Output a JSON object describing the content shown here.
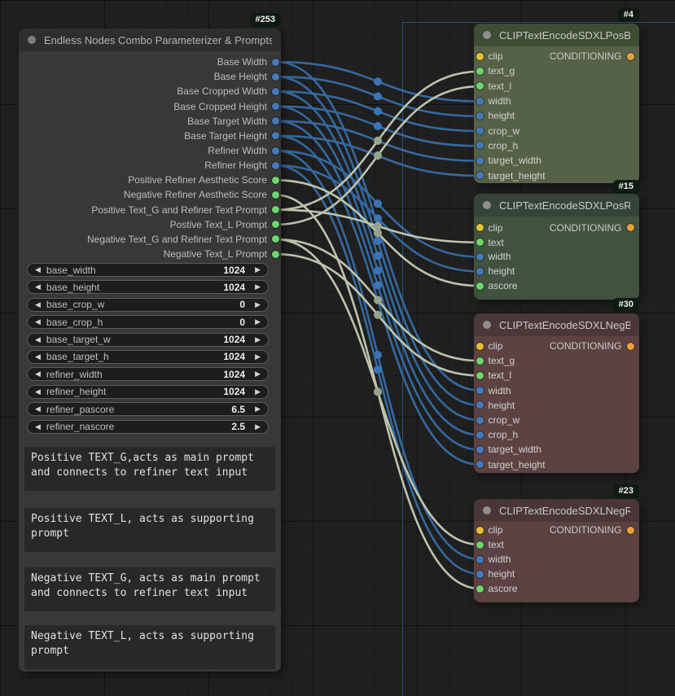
{
  "colors": {
    "link_int": "#35699f",
    "link_int_dot": "#3c74b8",
    "link_string": "#bcc5ad",
    "link_string_dot": "#97a48c",
    "slot_int": "#4679b8",
    "slot_string": "#6ed66e",
    "slot_clip": "#e7c133",
    "slot_conditioning": "#e9a23b",
    "pos_base_body": "#566247",
    "pos_refiner_body": "#41523f",
    "neg_base_body": "#5d4242",
    "neg_refiner_body": "#5b4141"
  },
  "nodes": {
    "parameterizer": {
      "badge": "#253",
      "title": "Endless Nodes Combo Parameterizer & Prompts",
      "outputs": [
        {
          "label": "Base Width",
          "type": "INT"
        },
        {
          "label": "Base Height",
          "type": "INT"
        },
        {
          "label": "Base Cropped Width",
          "type": "INT"
        },
        {
          "label": "Base Cropped Height",
          "type": "INT"
        },
        {
          "label": "Base Target Width",
          "type": "INT"
        },
        {
          "label": "Base Target Height",
          "type": "INT"
        },
        {
          "label": "Refiner Width",
          "type": "INT"
        },
        {
          "label": "Refiner Height",
          "type": "INT"
        },
        {
          "label": "Positive Refiner Aesthetic Score",
          "type": "STRING"
        },
        {
          "label": "Negative Refiner Aesthetic Score",
          "type": "STRING"
        },
        {
          "label": "Positive Text_G and Refiner Text Prompt",
          "type": "STRING"
        },
        {
          "label": "Postive Text_L Prompt",
          "type": "STRING"
        },
        {
          "label": "Negative Text_G and Refiner Text Prompt",
          "type": "STRING"
        },
        {
          "label": "Negative Text_L Prompt",
          "type": "STRING"
        }
      ],
      "widgets": [
        {
          "name": "base_width",
          "value": "1024"
        },
        {
          "name": "base_height",
          "value": "1024"
        },
        {
          "name": "base_crop_w",
          "value": "0"
        },
        {
          "name": "base_crop_h",
          "value": "0"
        },
        {
          "name": "base_target_w",
          "value": "1024"
        },
        {
          "name": "base_target_h",
          "value": "1024"
        },
        {
          "name": "refiner_width",
          "value": "1024"
        },
        {
          "name": "refiner_height",
          "value": "1024"
        },
        {
          "name": "refiner_pascore",
          "value": "6.5"
        },
        {
          "name": "refiner_nascore",
          "value": "2.5"
        }
      ],
      "prompts": [
        "Positive TEXT_G,acts as main prompt and connects to refiner text input",
        "Positive TEXT_L, acts as supporting prompt",
        "Negative TEXT_G, acts as main prompt and connects to refiner text input",
        "Negative TEXT_L, acts as supporting prompt"
      ]
    },
    "pos_base": {
      "badge": "#4",
      "title": "CLIPTextEncodeSDXLPosBase",
      "output": "CONDITIONING",
      "inputs": [
        {
          "name": "clip",
          "type": "CLIP"
        },
        {
          "name": "text_g",
          "type": "STRING"
        },
        {
          "name": "text_l",
          "type": "STRING"
        },
        {
          "name": "width",
          "type": "INT"
        },
        {
          "name": "height",
          "type": "INT"
        },
        {
          "name": "crop_w",
          "type": "INT"
        },
        {
          "name": "crop_h",
          "type": "INT"
        },
        {
          "name": "target_width",
          "type": "INT"
        },
        {
          "name": "target_height",
          "type": "INT"
        }
      ]
    },
    "pos_refiner": {
      "badge": "#15",
      "title": "CLIPTextEncodeSDXLPosRefiner",
      "output": "CONDITIONING",
      "inputs": [
        {
          "name": "clip",
          "type": "CLIP"
        },
        {
          "name": "text",
          "type": "STRING"
        },
        {
          "name": "width",
          "type": "INT"
        },
        {
          "name": "height",
          "type": "INT"
        },
        {
          "name": "ascore",
          "type": "STRING"
        }
      ]
    },
    "neg_base": {
      "badge": "#30",
      "title": "CLIPTextEncodeSDXLNegBase",
      "output": "CONDITIONING",
      "inputs": [
        {
          "name": "clip",
          "type": "CLIP"
        },
        {
          "name": "text_g",
          "type": "STRING"
        },
        {
          "name": "text_l",
          "type": "STRING"
        },
        {
          "name": "width",
          "type": "INT"
        },
        {
          "name": "height",
          "type": "INT"
        },
        {
          "name": "crop_w",
          "type": "INT"
        },
        {
          "name": "crop_h",
          "type": "INT"
        },
        {
          "name": "target_width",
          "type": "INT"
        },
        {
          "name": "target_height",
          "type": "INT"
        }
      ]
    },
    "neg_refiner": {
      "badge": "#23",
      "title": "CLIPTextEncodeSDXLNegRefiner",
      "output": "CONDITIONING",
      "inputs": [
        {
          "name": "clip",
          "type": "CLIP"
        },
        {
          "name": "text",
          "type": "STRING"
        },
        {
          "name": "width",
          "type": "INT"
        },
        {
          "name": "height",
          "type": "INT"
        },
        {
          "name": "ascore",
          "type": "STRING"
        }
      ]
    }
  },
  "connections": [
    {
      "from": 0,
      "to": "pos_base",
      "input": 3,
      "type": "INT"
    },
    {
      "from": 1,
      "to": "pos_base",
      "input": 4,
      "type": "INT"
    },
    {
      "from": 2,
      "to": "pos_base",
      "input": 5,
      "type": "INT"
    },
    {
      "from": 3,
      "to": "pos_base",
      "input": 6,
      "type": "INT"
    },
    {
      "from": 4,
      "to": "pos_base",
      "input": 7,
      "type": "INT"
    },
    {
      "from": 5,
      "to": "pos_base",
      "input": 8,
      "type": "INT"
    },
    {
      "from": 0,
      "to": "neg_base",
      "input": 3,
      "type": "INT"
    },
    {
      "from": 1,
      "to": "neg_base",
      "input": 4,
      "type": "INT"
    },
    {
      "from": 2,
      "to": "neg_base",
      "input": 5,
      "type": "INT"
    },
    {
      "from": 3,
      "to": "neg_base",
      "input": 6,
      "type": "INT"
    },
    {
      "from": 4,
      "to": "neg_base",
      "input": 7,
      "type": "INT"
    },
    {
      "from": 5,
      "to": "neg_base",
      "input": 8,
      "type": "INT"
    },
    {
      "from": 6,
      "to": "pos_refiner",
      "input": 2,
      "type": "INT"
    },
    {
      "from": 7,
      "to": "pos_refiner",
      "input": 3,
      "type": "INT"
    },
    {
      "from": 6,
      "to": "neg_refiner",
      "input": 2,
      "type": "INT"
    },
    {
      "from": 7,
      "to": "neg_refiner",
      "input": 3,
      "type": "INT"
    },
    {
      "from": 8,
      "to": "pos_refiner",
      "input": 4,
      "type": "STRING"
    },
    {
      "from": 9,
      "to": "neg_refiner",
      "input": 4,
      "type": "STRING"
    },
    {
      "from": 10,
      "to": "pos_base",
      "input": 1,
      "type": "STRING"
    },
    {
      "from": 10,
      "to": "pos_refiner",
      "input": 1,
      "type": "STRING"
    },
    {
      "from": 11,
      "to": "pos_base",
      "input": 2,
      "type": "STRING"
    },
    {
      "from": 12,
      "to": "neg_base",
      "input": 1,
      "type": "STRING"
    },
    {
      "from": 12,
      "to": "neg_refiner",
      "input": 1,
      "type": "STRING"
    },
    {
      "from": 13,
      "to": "neg_base",
      "input": 2,
      "type": "STRING"
    }
  ]
}
